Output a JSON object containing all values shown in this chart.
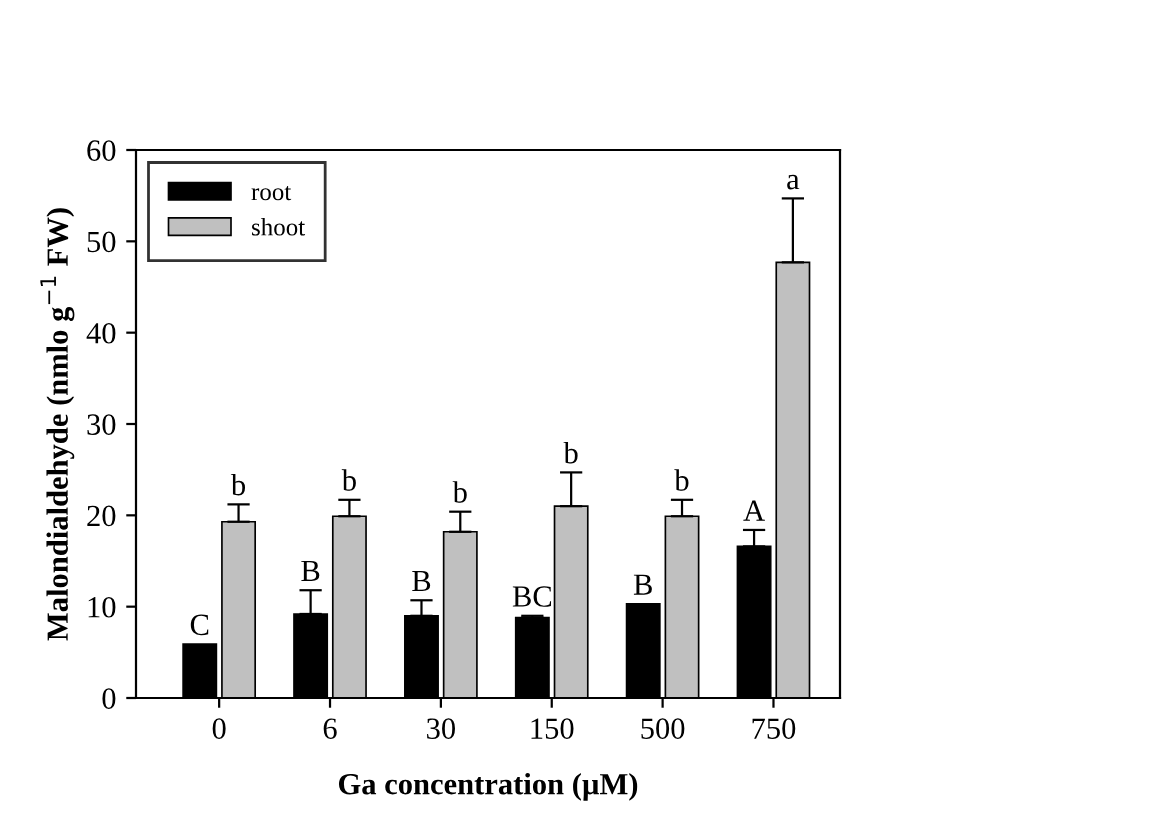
{
  "chart_data": {
    "type": "bar",
    "xlabel": "Ga concentration (µM)",
    "ylabel": "Malondialdehyde (nmlo g$^{−1}$ FW)",
    "categories": [
      "0",
      "6",
      "30",
      "150",
      "500",
      "750"
    ],
    "series": [
      {
        "name": "root",
        "color": "#000000",
        "values": [
          5.9,
          9.2,
          9.0,
          8.8,
          10.3,
          16.6
        ],
        "errors": [
          null,
          [
            9.2,
            11.8
          ],
          [
            9.0,
            10.7
          ],
          [
            8.8,
            9.0
          ],
          null,
          [
            16.6,
            18.4
          ]
        ]
      },
      {
        "name": "shoot",
        "color": "#c0c0c0",
        "values": [
          19.3,
          19.9,
          18.2,
          21.0,
          19.9,
          47.7
        ],
        "errors": [
          [
            19.3,
            21.2
          ],
          [
            19.9,
            21.7
          ],
          [
            18.2,
            20.4
          ],
          [
            21.0,
            24.7
          ],
          [
            19.9,
            21.7
          ],
          [
            47.7,
            54.7
          ]
        ]
      }
    ],
    "annotations": [
      {
        "text": "C",
        "x": "0",
        "y": 5.9
      },
      {
        "text": "B",
        "x": "6",
        "y": 11.8
      },
      {
        "text": "B",
        "x": "30",
        "y": 10.7
      },
      {
        "text": "BC",
        "x": "150",
        "y": 9.0
      },
      {
        "text": "B",
        "x": "500",
        "y": 10.3
      },
      {
        "text": "A",
        "x": "750",
        "y": 18.4
      },
      {
        "text": "b",
        "x": "0",
        "y": 21.2
      },
      {
        "text": "b",
        "x": "6",
        "y": 21.7
      },
      {
        "text": "b",
        "x": "30",
        "y": 20.4
      },
      {
        "text": "b",
        "x": "150",
        "y": 24.7
      },
      {
        "text": "b",
        "x": "500",
        "y": 21.7
      },
      {
        "text": "a",
        "x": "750",
        "y": 54.7
      }
    ],
    "ylim": [
      0,
      60
    ],
    "yticks": [
      0,
      10,
      20,
      30,
      40,
      50,
      60
    ],
    "grid": false,
    "legend": "top left"
  }
}
